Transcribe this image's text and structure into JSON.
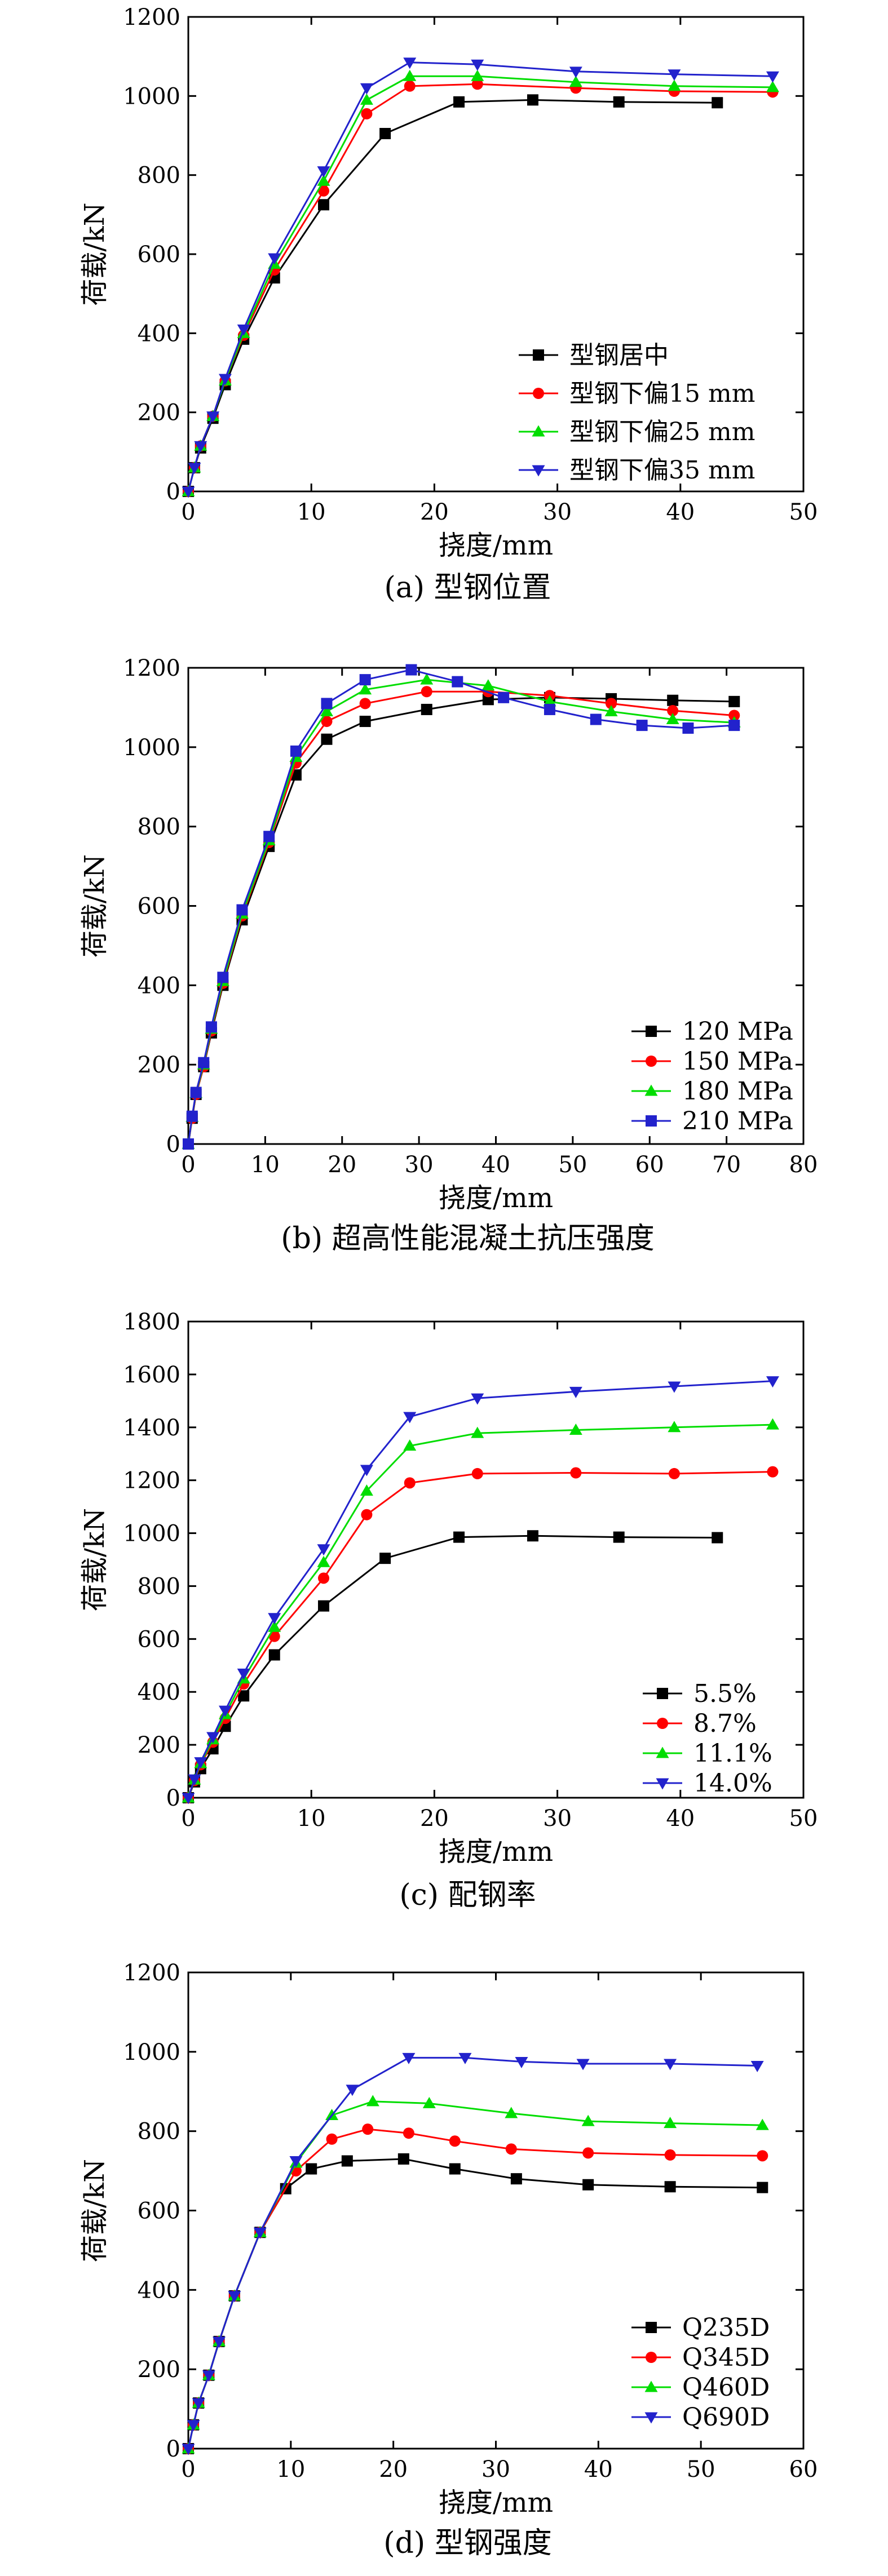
{
  "chart_data": [
    {
      "type": "line",
      "caption": "(a) 型钢位置",
      "xlabel": "挠度/mm",
      "ylabel": "荷载/kN",
      "xlim": [
        0,
        50
      ],
      "ylim": [
        0,
        1200
      ],
      "xticks": [
        0,
        10,
        20,
        30,
        40,
        50
      ],
      "yticks": [
        0,
        200,
        400,
        600,
        800,
        1000,
        1200
      ],
      "grid": false,
      "legend_position": "bottom-right",
      "series": [
        {
          "name": "型钢居中",
          "color": "#000000",
          "marker": "square",
          "x": [
            0,
            0.5,
            1,
            2,
            3,
            4.5,
            7,
            11,
            16,
            22,
            28,
            35,
            43
          ],
          "y": [
            0,
            60,
            110,
            185,
            270,
            385,
            540,
            725,
            905,
            985,
            990,
            985,
            983
          ]
        },
        {
          "name": "型钢下偏15 mm",
          "color": "#ff0000",
          "marker": "circle",
          "x": [
            0,
            0.5,
            1,
            2,
            3,
            4.5,
            7,
            11,
            14.5,
            18,
            23.5,
            31.5,
            39.5,
            47.5
          ],
          "y": [
            0,
            60,
            115,
            190,
            280,
            395,
            560,
            760,
            955,
            1025,
            1030,
            1020,
            1012,
            1010
          ]
        },
        {
          "name": "型钢下偏25 mm",
          "color": "#00dd00",
          "marker": "triangle-up",
          "x": [
            0,
            0.5,
            1,
            2,
            3,
            4.5,
            7,
            11,
            14.5,
            18,
            23.5,
            31.5,
            39.5,
            47.5
          ],
          "y": [
            0,
            60,
            115,
            190,
            280,
            400,
            575,
            785,
            990,
            1050,
            1050,
            1035,
            1025,
            1022
          ]
        },
        {
          "name": "型钢下偏35 mm",
          "color": "#2222cc",
          "marker": "triangle-down",
          "x": [
            0,
            0.5,
            1,
            2,
            3,
            4.5,
            7,
            11,
            14.5,
            18,
            23.5,
            31.5,
            39.5,
            47.5
          ],
          "y": [
            0,
            60,
            115,
            190,
            285,
            410,
            590,
            810,
            1020,
            1085,
            1080,
            1062,
            1055,
            1050
          ]
        }
      ]
    },
    {
      "type": "line",
      "caption": "(b) 超高性能混凝土抗压强度",
      "xlabel": "挠度/mm",
      "ylabel": "荷载/kN",
      "xlim": [
        0,
        80
      ],
      "ylim": [
        0,
        1200
      ],
      "xticks": [
        0,
        10,
        20,
        30,
        40,
        50,
        60,
        70,
        80
      ],
      "yticks": [
        0,
        200,
        400,
        600,
        800,
        1000,
        1200
      ],
      "grid": false,
      "legend_position": "bottom-right",
      "series": [
        {
          "name": "120 MPa",
          "color": "#000000",
          "marker": "square",
          "x": [
            0,
            0.5,
            1,
            2,
            3,
            4.5,
            7,
            10.5,
            14,
            18,
            23,
            31,
            39,
            47,
            55,
            63,
            71
          ],
          "y": [
            0,
            65,
            125,
            195,
            280,
            400,
            565,
            750,
            930,
            1020,
            1065,
            1095,
            1120,
            1125,
            1122,
            1118,
            1115
          ]
        },
        {
          "name": "150 MPa",
          "color": "#ff0000",
          "marker": "circle",
          "x": [
            0,
            0.5,
            1,
            2,
            3,
            4.5,
            7,
            10.5,
            14,
            18,
            23,
            31,
            39,
            47,
            55,
            63,
            71
          ],
          "y": [
            0,
            65,
            125,
            195,
            285,
            405,
            575,
            760,
            960,
            1065,
            1110,
            1140,
            1140,
            1130,
            1110,
            1092,
            1080
          ]
        },
        {
          "name": "180 MPa",
          "color": "#00dd00",
          "marker": "triangle-up",
          "x": [
            0,
            0.5,
            1,
            2,
            3,
            4.5,
            7,
            10.5,
            14,
            18,
            23,
            31,
            39,
            47,
            55,
            63,
            71
          ],
          "y": [
            0,
            68,
            128,
            200,
            290,
            410,
            580,
            765,
            975,
            1090,
            1145,
            1170,
            1155,
            1115,
            1090,
            1070,
            1062
          ]
        },
        {
          "name": "210 MPa",
          "color": "#2222cc",
          "marker": "square",
          "x": [
            0,
            0.5,
            1,
            2,
            3,
            4.5,
            7,
            10.5,
            14,
            18,
            23,
            29,
            35,
            41,
            47,
            53,
            59,
            65,
            71
          ],
          "y": [
            0,
            70,
            130,
            205,
            295,
            420,
            590,
            775,
            990,
            1110,
            1170,
            1195,
            1165,
            1125,
            1095,
            1070,
            1055,
            1048,
            1055
          ]
        }
      ]
    },
    {
      "type": "line",
      "caption": "(c) 配钢率",
      "xlabel": "挠度/mm",
      "ylabel": "荷载/kN",
      "xlim": [
        0,
        50
      ],
      "ylim": [
        0,
        1800
      ],
      "xticks": [
        0,
        10,
        20,
        30,
        40,
        50
      ],
      "yticks": [
        0,
        200,
        400,
        600,
        800,
        1000,
        1200,
        1400,
        1600,
        1800
      ],
      "grid": false,
      "legend_position": "bottom-right",
      "series": [
        {
          "name": "5.5%",
          "color": "#000000",
          "marker": "square",
          "x": [
            0,
            0.5,
            1,
            2,
            3,
            4.5,
            7,
            11,
            16,
            22,
            28,
            35,
            43
          ],
          "y": [
            0,
            60,
            110,
            185,
            270,
            385,
            540,
            725,
            905,
            985,
            990,
            985,
            983
          ]
        },
        {
          "name": "8.7%",
          "color": "#ff0000",
          "marker": "circle",
          "x": [
            0,
            0.5,
            1,
            2,
            3,
            4.5,
            7,
            11,
            14.5,
            18,
            23.5,
            31.5,
            39.5,
            47.5
          ],
          "y": [
            0,
            65,
            125,
            210,
            300,
            430,
            610,
            830,
            1070,
            1190,
            1225,
            1228,
            1225,
            1232
          ]
        },
        {
          "name": "11.1%",
          "color": "#00dd00",
          "marker": "triangle-up",
          "x": [
            0,
            0.5,
            1,
            2,
            3,
            4.5,
            7,
            11,
            14.5,
            18,
            23.5,
            31.5,
            39.5,
            47.5
          ],
          "y": [
            0,
            68,
            130,
            220,
            315,
            450,
            645,
            890,
            1160,
            1330,
            1378,
            1390,
            1400,
            1410
          ]
        },
        {
          "name": "14.0%",
          "color": "#2222cc",
          "marker": "triangle-down",
          "x": [
            0,
            0.5,
            1,
            2,
            3,
            4.5,
            7,
            11,
            14.5,
            18,
            23.5,
            31.5,
            39.5,
            47.5
          ],
          "y": [
            0,
            70,
            135,
            230,
            330,
            470,
            680,
            940,
            1240,
            1440,
            1510,
            1535,
            1555,
            1575
          ]
        }
      ]
    },
    {
      "type": "line",
      "caption": "(d) 型钢强度",
      "xlabel": "挠度/mm",
      "ylabel": "荷载/kN",
      "xlim": [
        0,
        60
      ],
      "ylim": [
        0,
        1200
      ],
      "xticks": [
        0,
        10,
        20,
        30,
        40,
        50,
        60
      ],
      "yticks": [
        0,
        200,
        400,
        600,
        800,
        1000,
        1200
      ],
      "grid": false,
      "legend_position": "bottom-right",
      "series": [
        {
          "name": "Q235D",
          "color": "#000000",
          "marker": "square",
          "x": [
            0,
            0.5,
            1,
            2,
            3,
            4.5,
            7,
            9.5,
            12,
            15.5,
            21,
            26,
            32,
            39,
            47,
            56
          ],
          "y": [
            0,
            60,
            115,
            185,
            270,
            385,
            545,
            655,
            705,
            725,
            730,
            705,
            680,
            665,
            660,
            658
          ]
        },
        {
          "name": "Q345D",
          "color": "#ff0000",
          "marker": "circle",
          "x": [
            0,
            0.5,
            1,
            2,
            3,
            4.5,
            7,
            10.5,
            14,
            17.5,
            21.5,
            26,
            31.5,
            39,
            47,
            56
          ],
          "y": [
            0,
            60,
            115,
            185,
            270,
            385,
            545,
            700,
            780,
            805,
            795,
            775,
            755,
            745,
            740,
            738
          ]
        },
        {
          "name": "Q460D",
          "color": "#00dd00",
          "marker": "triangle-up",
          "x": [
            0,
            0.5,
            1,
            2,
            3,
            4.5,
            7,
            10.5,
            14,
            18,
            23.5,
            31.5,
            39,
            47,
            56
          ],
          "y": [
            0,
            60,
            115,
            185,
            270,
            385,
            545,
            720,
            840,
            875,
            870,
            845,
            825,
            820,
            815
          ]
        },
        {
          "name": "Q690D",
          "color": "#2222cc",
          "marker": "triangle-down",
          "x": [
            0,
            0.5,
            1,
            2,
            3,
            4.5,
            7,
            10.5,
            16,
            21.5,
            27,
            32.5,
            38.5,
            47,
            55.5
          ],
          "y": [
            0,
            60,
            115,
            185,
            270,
            385,
            545,
            725,
            905,
            985,
            985,
            975,
            970,
            970,
            965
          ]
        }
      ]
    }
  ]
}
